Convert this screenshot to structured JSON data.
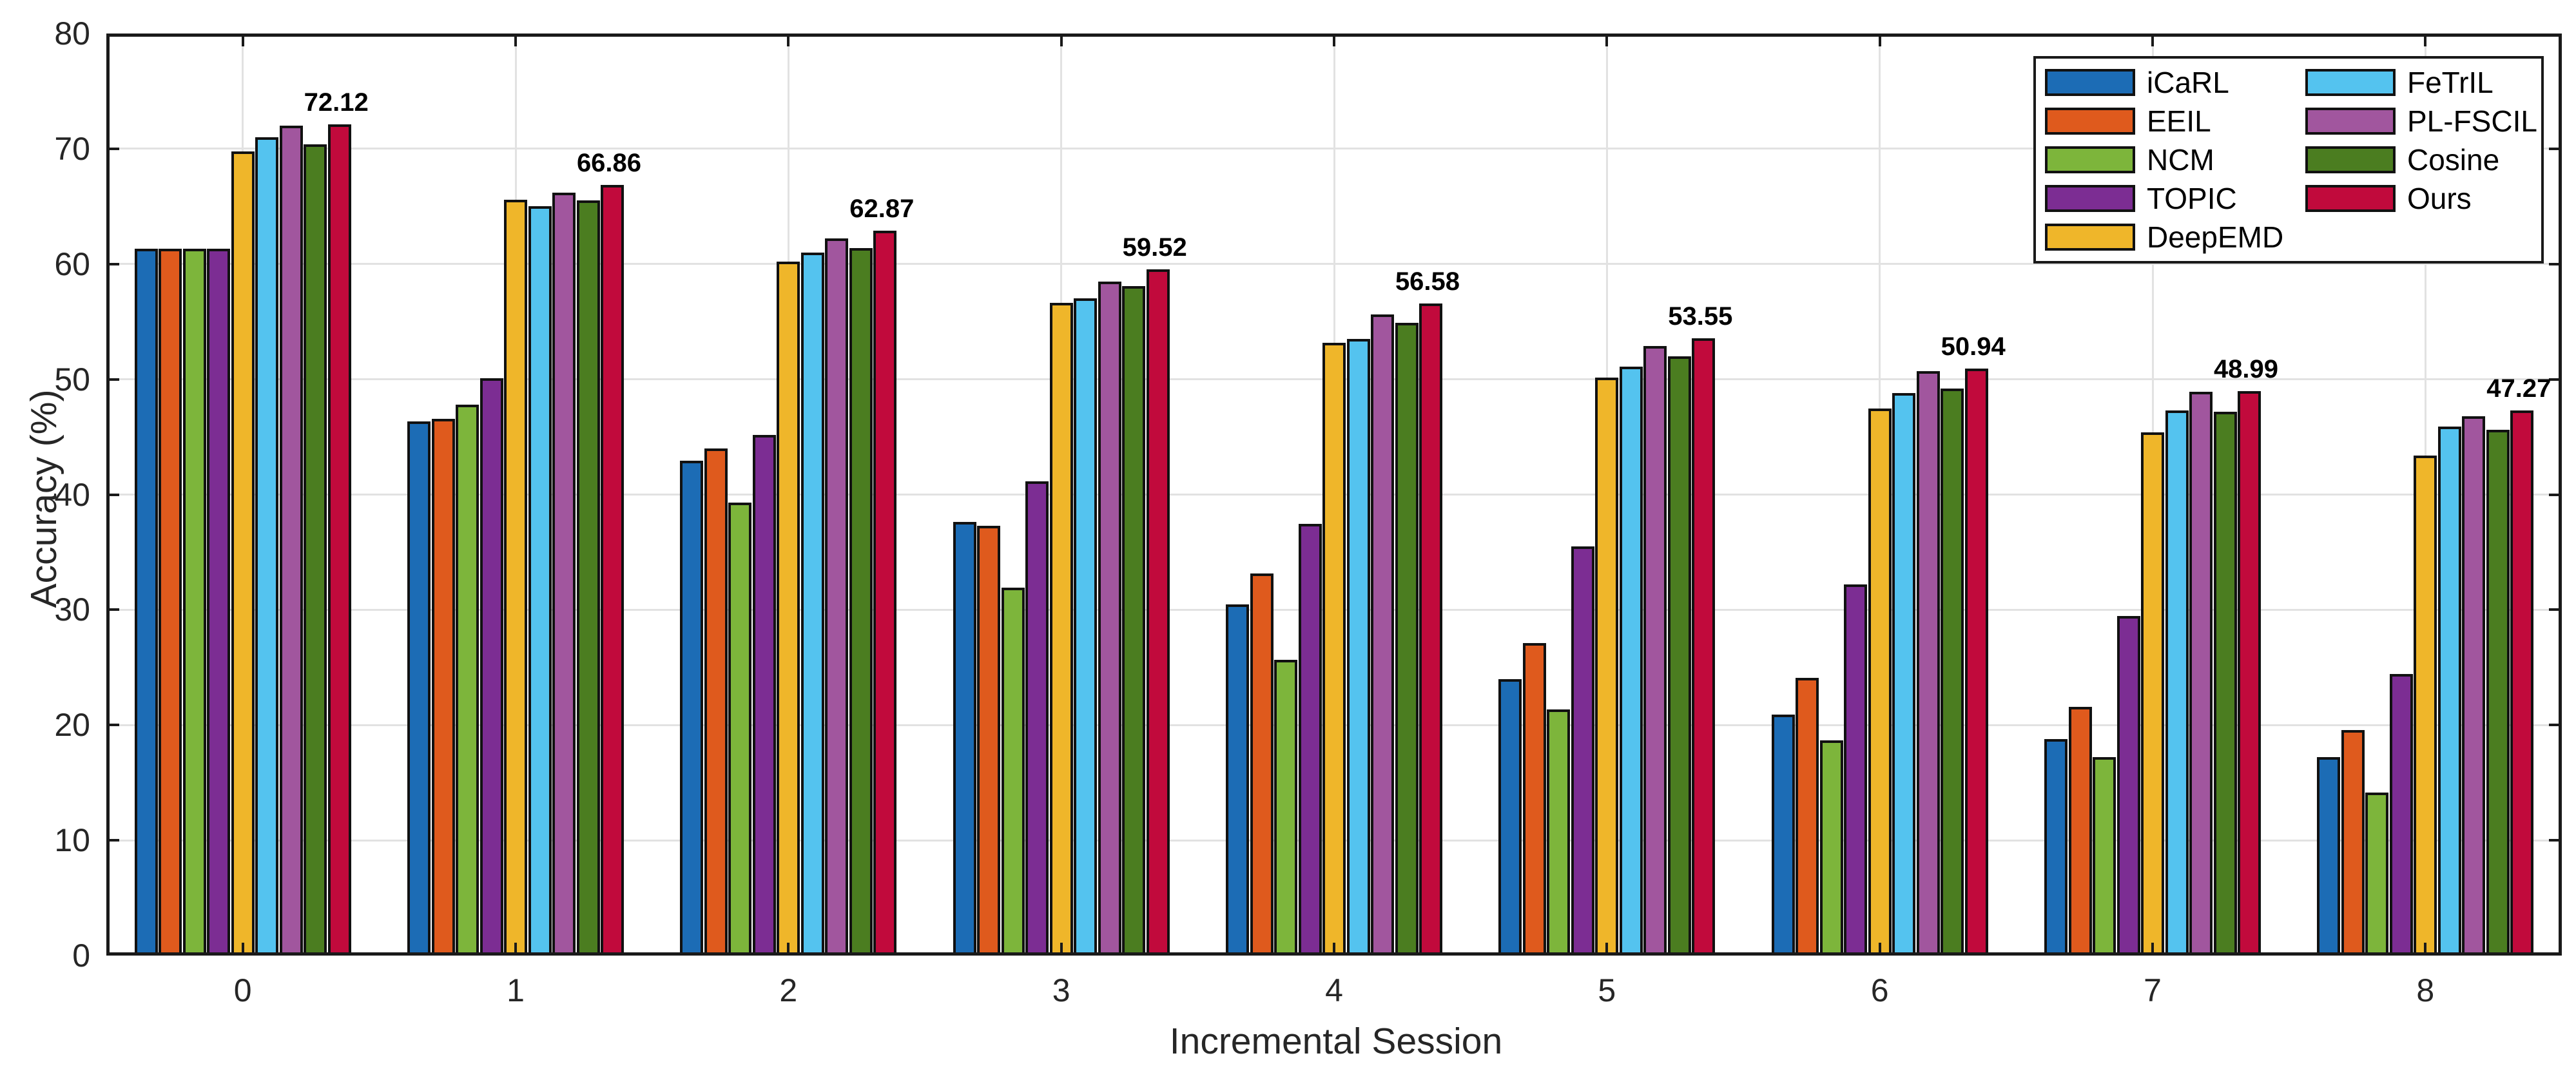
{
  "chart_data": {
    "type": "bar",
    "title": "",
    "xlabel": "Incremental Session",
    "ylabel": "Accuracy (%)",
    "categories": [
      "0",
      "1",
      "2",
      "3",
      "4",
      "5",
      "6",
      "7",
      "8"
    ],
    "ylim": [
      0,
      80
    ],
    "yticks": [
      0,
      10,
      20,
      30,
      40,
      50,
      60,
      70,
      80
    ],
    "grid": "both",
    "legend_position": "top-right",
    "legend_columns": [
      [
        "iCaRL",
        "EEIL",
        "NCM",
        "TOPIC",
        "DeepEMD"
      ],
      [
        "FeTrIL",
        "PL-FSCIL",
        "Cosine",
        "Ours"
      ]
    ],
    "series": [
      {
        "name": "iCaRL",
        "color": "#1c6cb5",
        "values": [
          61.31,
          46.32,
          42.94,
          37.63,
          30.49,
          24.0,
          20.89,
          18.8,
          17.21
        ]
      },
      {
        "name": "EEIL",
        "color": "#df5a1d",
        "values": [
          61.31,
          46.58,
          44.0,
          37.29,
          33.14,
          27.12,
          24.1,
          21.57,
          19.58
        ]
      },
      {
        "name": "NCM",
        "color": "#7db53b",
        "values": [
          61.31,
          47.8,
          39.31,
          31.91,
          25.68,
          21.35,
          18.67,
          17.24,
          14.17
        ]
      },
      {
        "name": "TOPIC",
        "color": "#7c2d93",
        "values": [
          61.31,
          50.09,
          45.17,
          41.16,
          37.48,
          35.52,
          32.19,
          29.46,
          24.42
        ]
      },
      {
        "name": "DeepEMD",
        "color": "#efb62a",
        "values": [
          69.77,
          65.6,
          60.21,
          56.63,
          53.16,
          50.13,
          47.49,
          45.42,
          43.41
        ]
      },
      {
        "name": "FeTrIL",
        "color": "#54c3ef",
        "values": [
          71.0,
          65.0,
          61.0,
          57.0,
          53.5,
          51.1,
          48.8,
          47.3,
          45.9
        ]
      },
      {
        "name": "PL-FSCIL",
        "color": "#a1569e",
        "values": [
          72.0,
          66.2,
          62.2,
          58.5,
          55.6,
          52.9,
          50.7,
          48.9,
          46.8
        ]
      },
      {
        "name": "Cosine",
        "color": "#4b7d20",
        "values": [
          70.4,
          65.5,
          61.4,
          58.1,
          54.9,
          52.0,
          49.2,
          47.2,
          45.6
        ]
      },
      {
        "name": "Ours",
        "color": "#c10a3c",
        "values": [
          72.12,
          66.86,
          62.87,
          59.52,
          56.58,
          53.55,
          50.94,
          48.99,
          47.27
        ],
        "value_labels": [
          "72.12",
          "66.86",
          "62.87",
          "59.52",
          "56.58",
          "53.55",
          "50.94",
          "48.99",
          "47.27"
        ]
      }
    ]
  }
}
